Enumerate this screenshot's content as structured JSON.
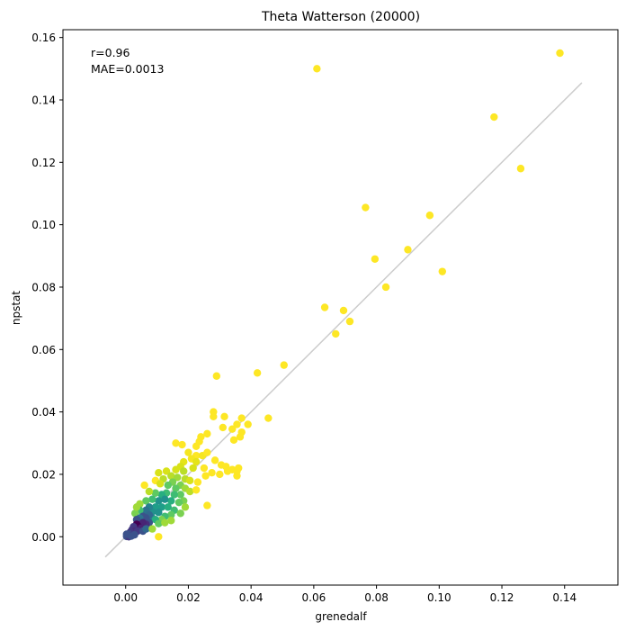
{
  "chart_data": {
    "type": "scatter",
    "title": "Theta Watterson (20000)",
    "xlabel": "grenedalf",
    "ylabel": "npstat",
    "xlim": [
      -0.02,
      0.157
    ],
    "ylim": [
      -0.0155,
      0.1625
    ],
    "xticks": [
      0.0,
      0.02,
      0.04,
      0.06,
      0.08,
      0.1,
      0.12,
      0.14
    ],
    "xtick_labels": [
      "0.00",
      "0.02",
      "0.04",
      "0.06",
      "0.08",
      "0.10",
      "0.12",
      "0.14"
    ],
    "yticks": [
      0.0,
      0.02,
      0.04,
      0.06,
      0.08,
      0.1,
      0.12,
      0.14,
      0.16
    ],
    "ytick_labels": [
      "0.00",
      "0.02",
      "0.04",
      "0.06",
      "0.08",
      "0.10",
      "0.12",
      "0.14",
      "0.16"
    ],
    "grid": false,
    "identity_line": {
      "from": -0.0065,
      "to": 0.1455,
      "color": "#cccccc"
    },
    "annotations": [
      "r=0.96",
      "MAE=0.0013"
    ],
    "colormap": "viridis (point density)",
    "point_color_low": "#440154",
    "point_color_high": "#fde725",
    "points": [
      {
        "x": 0.1385,
        "y": 0.155,
        "c": "#fde725"
      },
      {
        "x": 0.061,
        "y": 0.15,
        "c": "#fde725"
      },
      {
        "x": 0.1175,
        "y": 0.1345,
        "c": "#fde725"
      },
      {
        "x": 0.126,
        "y": 0.118,
        "c": "#fde725"
      },
      {
        "x": 0.0765,
        "y": 0.1055,
        "c": "#fde725"
      },
      {
        "x": 0.097,
        "y": 0.103,
        "c": "#fde725"
      },
      {
        "x": 0.09,
        "y": 0.092,
        "c": "#fde725"
      },
      {
        "x": 0.0795,
        "y": 0.089,
        "c": "#fde725"
      },
      {
        "x": 0.101,
        "y": 0.085,
        "c": "#fde725"
      },
      {
        "x": 0.083,
        "y": 0.08,
        "c": "#fde725"
      },
      {
        "x": 0.0635,
        "y": 0.0735,
        "c": "#fde725"
      },
      {
        "x": 0.0695,
        "y": 0.0725,
        "c": "#fde725"
      },
      {
        "x": 0.0715,
        "y": 0.069,
        "c": "#fde725"
      },
      {
        "x": 0.067,
        "y": 0.065,
        "c": "#fde725"
      },
      {
        "x": 0.0505,
        "y": 0.055,
        "c": "#fde725"
      },
      {
        "x": 0.042,
        "y": 0.0525,
        "c": "#fde725"
      },
      {
        "x": 0.029,
        "y": 0.0515,
        "c": "#fde725"
      },
      {
        "x": 0.028,
        "y": 0.04,
        "c": "#fde725"
      },
      {
        "x": 0.028,
        "y": 0.0385,
        "c": "#fde725"
      },
      {
        "x": 0.0315,
        "y": 0.0385,
        "c": "#fde725"
      },
      {
        "x": 0.037,
        "y": 0.038,
        "c": "#fde725"
      },
      {
        "x": 0.0455,
        "y": 0.038,
        "c": "#fde725"
      },
      {
        "x": 0.0355,
        "y": 0.036,
        "c": "#fde725"
      },
      {
        "x": 0.039,
        "y": 0.036,
        "c": "#fde725"
      },
      {
        "x": 0.031,
        "y": 0.035,
        "c": "#fde725"
      },
      {
        "x": 0.034,
        "y": 0.0345,
        "c": "#fde725"
      },
      {
        "x": 0.037,
        "y": 0.0335,
        "c": "#fde725"
      },
      {
        "x": 0.0365,
        "y": 0.032,
        "c": "#fde725"
      },
      {
        "x": 0.0345,
        "y": 0.031,
        "c": "#fde725"
      },
      {
        "x": 0.026,
        "y": 0.033,
        "c": "#fde725"
      },
      {
        "x": 0.024,
        "y": 0.032,
        "c": "#fde725"
      },
      {
        "x": 0.0235,
        "y": 0.0305,
        "c": "#fde725"
      },
      {
        "x": 0.016,
        "y": 0.03,
        "c": "#fde725"
      },
      {
        "x": 0.018,
        "y": 0.0295,
        "c": "#fde725"
      },
      {
        "x": 0.0225,
        "y": 0.029,
        "c": "#fde725"
      },
      {
        "x": 0.02,
        "y": 0.027,
        "c": "#f5e61f"
      },
      {
        "x": 0.0225,
        "y": 0.026,
        "c": "#fde725"
      },
      {
        "x": 0.0245,
        "y": 0.026,
        "c": "#f5e61f"
      },
      {
        "x": 0.026,
        "y": 0.027,
        "c": "#fde725"
      },
      {
        "x": 0.021,
        "y": 0.025,
        "c": "#f5e61f"
      },
      {
        "x": 0.0185,
        "y": 0.024,
        "c": "#e5e419"
      },
      {
        "x": 0.0225,
        "y": 0.024,
        "c": "#e5e419"
      },
      {
        "x": 0.0285,
        "y": 0.0245,
        "c": "#fde725"
      },
      {
        "x": 0.0305,
        "y": 0.023,
        "c": "#fde725"
      },
      {
        "x": 0.032,
        "y": 0.0225,
        "c": "#fde725"
      },
      {
        "x": 0.0325,
        "y": 0.021,
        "c": "#fde725"
      },
      {
        "x": 0.036,
        "y": 0.022,
        "c": "#fde725"
      },
      {
        "x": 0.034,
        "y": 0.0215,
        "c": "#fde725"
      },
      {
        "x": 0.0355,
        "y": 0.021,
        "c": "#fde725"
      },
      {
        "x": 0.0355,
        "y": 0.0195,
        "c": "#fde725"
      },
      {
        "x": 0.03,
        "y": 0.02,
        "c": "#fde725"
      },
      {
        "x": 0.0275,
        "y": 0.0205,
        "c": "#fde725"
      },
      {
        "x": 0.0175,
        "y": 0.0225,
        "c": "#d8e219"
      },
      {
        "x": 0.016,
        "y": 0.0215,
        "c": "#d8e219"
      },
      {
        "x": 0.0185,
        "y": 0.021,
        "c": "#bade28"
      },
      {
        "x": 0.0215,
        "y": 0.022,
        "c": "#d8e219"
      },
      {
        "x": 0.025,
        "y": 0.022,
        "c": "#fde725"
      },
      {
        "x": 0.0255,
        "y": 0.0195,
        "c": "#fde725"
      },
      {
        "x": 0.0105,
        "y": 0.0205,
        "c": "#d8e219"
      },
      {
        "x": 0.013,
        "y": 0.021,
        "c": "#d8e219"
      },
      {
        "x": 0.012,
        "y": 0.0185,
        "c": "#bade28"
      },
      {
        "x": 0.0095,
        "y": 0.018,
        "c": "#fde725"
      },
      {
        "x": 0.0145,
        "y": 0.0195,
        "c": "#bade28"
      },
      {
        "x": 0.0165,
        "y": 0.019,
        "c": "#a0da39"
      },
      {
        "x": 0.019,
        "y": 0.0185,
        "c": "#bade28"
      },
      {
        "x": 0.0205,
        "y": 0.018,
        "c": "#d8e219"
      },
      {
        "x": 0.023,
        "y": 0.0175,
        "c": "#fde725"
      },
      {
        "x": 0.015,
        "y": 0.0175,
        "c": "#7ad151"
      },
      {
        "x": 0.0175,
        "y": 0.0165,
        "c": "#7ad151"
      },
      {
        "x": 0.0135,
        "y": 0.0165,
        "c": "#5ec962"
      },
      {
        "x": 0.016,
        "y": 0.0155,
        "c": "#5ec962"
      },
      {
        "x": 0.019,
        "y": 0.0155,
        "c": "#a0da39"
      },
      {
        "x": 0.0205,
        "y": 0.0145,
        "c": "#bade28"
      },
      {
        "x": 0.0225,
        "y": 0.015,
        "c": "#fde725"
      },
      {
        "x": 0.0175,
        "y": 0.0135,
        "c": "#5ec962"
      },
      {
        "x": 0.0155,
        "y": 0.0135,
        "c": "#3fbc73"
      },
      {
        "x": 0.013,
        "y": 0.014,
        "c": "#3fbc73"
      },
      {
        "x": 0.0115,
        "y": 0.0135,
        "c": "#28ae80"
      },
      {
        "x": 0.0095,
        "y": 0.014,
        "c": "#5ec962"
      },
      {
        "x": 0.0075,
        "y": 0.0145,
        "c": "#bade28"
      },
      {
        "x": 0.006,
        "y": 0.0165,
        "c": "#fde725"
      },
      {
        "x": 0.0185,
        "y": 0.0115,
        "c": "#7ad151"
      },
      {
        "x": 0.017,
        "y": 0.011,
        "c": "#5ec962"
      },
      {
        "x": 0.019,
        "y": 0.0095,
        "c": "#a0da39"
      },
      {
        "x": 0.026,
        "y": 0.01,
        "c": "#fde725"
      },
      {
        "x": 0.0145,
        "y": 0.0115,
        "c": "#28ae80"
      },
      {
        "x": 0.0125,
        "y": 0.012,
        "c": "#21918c"
      },
      {
        "x": 0.0105,
        "y": 0.0115,
        "c": "#21918c"
      },
      {
        "x": 0.0085,
        "y": 0.012,
        "c": "#3fbc73"
      },
      {
        "x": 0.0065,
        "y": 0.0115,
        "c": "#5ec962"
      },
      {
        "x": 0.0045,
        "y": 0.0105,
        "c": "#a0da39"
      },
      {
        "x": 0.0115,
        "y": 0.0095,
        "c": "#1f9e89"
      },
      {
        "x": 0.0135,
        "y": 0.0095,
        "c": "#28ae80"
      },
      {
        "x": 0.0155,
        "y": 0.0085,
        "c": "#3fbc73"
      },
      {
        "x": 0.0175,
        "y": 0.0075,
        "c": "#7ad151"
      },
      {
        "x": 0.0145,
        "y": 0.007,
        "c": "#5ec962"
      },
      {
        "x": 0.0125,
        "y": 0.0065,
        "c": "#3fbc73"
      },
      {
        "x": 0.0115,
        "y": 0.0055,
        "c": "#7ad151"
      },
      {
        "x": 0.0095,
        "y": 0.0095,
        "c": "#1f9e89"
      },
      {
        "x": 0.0105,
        "y": 0.0078,
        "c": "#21918c"
      },
      {
        "x": 0.0085,
        "y": 0.008,
        "c": "#21918c"
      },
      {
        "x": 0.0075,
        "y": 0.0095,
        "c": "#26828e"
      },
      {
        "x": 0.0065,
        "y": 0.0085,
        "c": "#2c728e"
      },
      {
        "x": 0.0055,
        "y": 0.0078,
        "c": "#2c728e"
      },
      {
        "x": 0.0045,
        "y": 0.0085,
        "c": "#3fbc73"
      },
      {
        "x": 0.003,
        "y": 0.0075,
        "c": "#7ad151"
      },
      {
        "x": 0.0085,
        "y": 0.006,
        "c": "#26828e"
      },
      {
        "x": 0.0075,
        "y": 0.007,
        "c": "#31688e"
      },
      {
        "x": 0.0065,
        "y": 0.006,
        "c": "#3b528b"
      },
      {
        "x": 0.0055,
        "y": 0.0065,
        "c": "#3b528b"
      },
      {
        "x": 0.0045,
        "y": 0.006,
        "c": "#2c728e"
      },
      {
        "x": 0.0035,
        "y": 0.0055,
        "c": "#3b528b"
      },
      {
        "x": 0.0095,
        "y": 0.0055,
        "c": "#28ae80"
      },
      {
        "x": 0.0105,
        "y": 0.0042,
        "c": "#5ec962"
      },
      {
        "x": 0.0075,
        "y": 0.0045,
        "c": "#3b528b"
      },
      {
        "x": 0.0065,
        "y": 0.004,
        "c": "#472d7b"
      },
      {
        "x": 0.0055,
        "y": 0.0045,
        "c": "#482475"
      },
      {
        "x": 0.0045,
        "y": 0.0038,
        "c": "#482475"
      },
      {
        "x": 0.0035,
        "y": 0.004,
        "c": "#440154"
      },
      {
        "x": 0.0042,
        "y": 0.0032,
        "c": "#440154"
      },
      {
        "x": 0.0032,
        "y": 0.003,
        "c": "#440154"
      },
      {
        "x": 0.005,
        "y": 0.0028,
        "c": "#482475"
      },
      {
        "x": 0.0025,
        "y": 0.0032,
        "c": "#443983"
      },
      {
        "x": 0.002,
        "y": 0.0022,
        "c": "#443983"
      },
      {
        "x": 0.0028,
        "y": 0.0018,
        "c": "#472d7b"
      },
      {
        "x": 0.0038,
        "y": 0.0018,
        "c": "#443983"
      },
      {
        "x": 0.0055,
        "y": 0.0018,
        "c": "#3b528b"
      },
      {
        "x": 0.0015,
        "y": 0.0015,
        "c": "#443983"
      },
      {
        "x": 0.0012,
        "y": 0.0008,
        "c": "#3b528b"
      },
      {
        "x": 0.002,
        "y": 0.0005,
        "c": "#443983"
      },
      {
        "x": 0.0008,
        "y": 0.0002,
        "c": "#3b528b"
      },
      {
        "x": 0.0003,
        "y": 0.0001,
        "c": "#3b528b"
      },
      {
        "x": 0.001,
        "y": 0.0,
        "c": "#443983"
      },
      {
        "x": 0.0003,
        "y": 0.0008,
        "c": "#3b528b"
      },
      {
        "x": 0.0018,
        "y": 0.0002,
        "c": "#3b528b"
      },
      {
        "x": 0.0028,
        "y": 0.0006,
        "c": "#3b528b"
      },
      {
        "x": 0.0065,
        "y": 0.0025,
        "c": "#31688e"
      },
      {
        "x": 0.0035,
        "y": 0.0095,
        "c": "#a0da39"
      },
      {
        "x": 0.0105,
        "y": 0.0,
        "c": "#fde725"
      },
      {
        "x": 0.0085,
        "y": 0.0025,
        "c": "#a0da39"
      },
      {
        "x": 0.0125,
        "y": 0.0045,
        "c": "#a0da39"
      },
      {
        "x": 0.0145,
        "y": 0.0052,
        "c": "#a0da39"
      },
      {
        "x": 0.011,
        "y": 0.017,
        "c": "#d8e219"
      }
    ]
  }
}
